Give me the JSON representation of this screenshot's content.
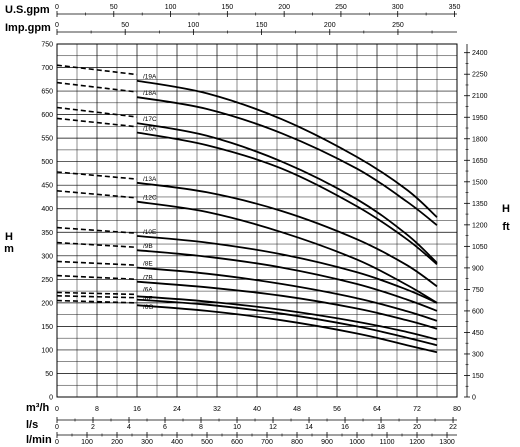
{
  "chart_data": {
    "type": "line",
    "y_left": {
      "unit_top": "H",
      "unit_bottom": "m",
      "ticks": [
        0,
        50,
        100,
        150,
        200,
        250,
        300,
        350,
        400,
        450,
        500,
        550,
        600,
        650,
        700,
        750
      ],
      "range": [
        0,
        750
      ]
    },
    "y_right": {
      "unit_top": "H",
      "unit_bottom": "ft",
      "ticks": [
        0,
        150,
        300,
        450,
        600,
        750,
        900,
        1050,
        1200,
        1350,
        1500,
        1650,
        1800,
        1950,
        2100,
        2250,
        2400
      ],
      "range": [
        0,
        2460.6
      ]
    },
    "x_axes": [
      {
        "label": "U.S.gpm",
        "position": "top",
        "ticks": [
          0,
          50,
          100,
          150,
          200,
          250,
          300,
          350
        ],
        "max": 352.2
      },
      {
        "label": "Imp.gpm",
        "position": "top",
        "ticks": [
          0,
          50,
          100,
          150,
          200,
          250
        ],
        "max": 293.3
      },
      {
        "label": "m³/h",
        "position": "bottom",
        "ticks": [
          0,
          8,
          16,
          24,
          32,
          40,
          48,
          56,
          64,
          72,
          80
        ],
        "max": 80
      },
      {
        "label": "l/s",
        "position": "bottom",
        "ticks": [
          0,
          2,
          4,
          6,
          8,
          10,
          12,
          14,
          16,
          18,
          20,
          22
        ],
        "max": 22.22
      },
      {
        "label": "l/min",
        "position": "bottom",
        "ticks": [
          0,
          100,
          200,
          300,
          400,
          500,
          600,
          700,
          800,
          900,
          1000,
          1100,
          1200,
          1300
        ],
        "max": 1333.3
      }
    ],
    "series": [
      {
        "name": "/19A",
        "dashed": [
          [
            0,
            705
          ],
          [
            16,
            685
          ]
        ],
        "solid": [
          [
            16,
            672
          ],
          [
            30,
            645
          ],
          [
            45,
            590
          ],
          [
            60,
            510
          ],
          [
            70,
            440
          ],
          [
            76,
            382
          ]
        ]
      },
      {
        "name": "/18A",
        "dashed": [
          [
            0,
            668
          ],
          [
            16,
            648
          ]
        ],
        "solid": [
          [
            16,
            637
          ],
          [
            30,
            612
          ],
          [
            45,
            560
          ],
          [
            60,
            485
          ],
          [
            70,
            415
          ],
          [
            76,
            365
          ]
        ]
      },
      {
        "name": "/17C",
        "dashed": [
          [
            0,
            615
          ],
          [
            16,
            595
          ]
        ],
        "solid": [
          [
            16,
            582
          ],
          [
            30,
            555
          ],
          [
            45,
            500
          ],
          [
            60,
            420
          ],
          [
            70,
            345
          ],
          [
            76,
            285
          ]
        ]
      },
      {
        "name": "/16A",
        "dashed": [
          [
            0,
            592
          ],
          [
            16,
            574
          ]
        ],
        "solid": [
          [
            16,
            562
          ],
          [
            30,
            535
          ],
          [
            45,
            485
          ],
          [
            60,
            405
          ],
          [
            70,
            335
          ],
          [
            76,
            282
          ]
        ]
      },
      {
        "name": "/13A",
        "dashed": [
          [
            0,
            478
          ],
          [
            16,
            463
          ]
        ],
        "solid": [
          [
            16,
            455
          ],
          [
            30,
            435
          ],
          [
            45,
            395
          ],
          [
            60,
            335
          ],
          [
            70,
            280
          ],
          [
            76,
            235
          ]
        ]
      },
      {
        "name": "/12C",
        "dashed": [
          [
            0,
            438
          ],
          [
            16,
            423
          ]
        ],
        "solid": [
          [
            16,
            415
          ],
          [
            30,
            393
          ],
          [
            45,
            350
          ],
          [
            60,
            292
          ],
          [
            70,
            238
          ],
          [
            76,
            200
          ]
        ]
      },
      {
        "name": "/10E",
        "dashed": [
          [
            0,
            360
          ],
          [
            16,
            348
          ]
        ],
        "solid": [
          [
            16,
            342
          ],
          [
            30,
            328
          ],
          [
            45,
            303
          ],
          [
            60,
            265
          ],
          [
            70,
            228
          ],
          [
            76,
            200
          ]
        ]
      },
      {
        "name": "/9B",
        "dashed": [
          [
            0,
            328
          ],
          [
            16,
            318
          ]
        ],
        "solid": [
          [
            16,
            312
          ],
          [
            30,
            298
          ],
          [
            45,
            275
          ],
          [
            60,
            240
          ],
          [
            70,
            207
          ],
          [
            76,
            183
          ]
        ]
      },
      {
        "name": "/8E",
        "dashed": [
          [
            0,
            288
          ],
          [
            16,
            280
          ]
        ],
        "solid": [
          [
            16,
            275
          ],
          [
            30,
            262
          ],
          [
            45,
            240
          ],
          [
            60,
            210
          ],
          [
            70,
            182
          ],
          [
            76,
            162
          ]
        ]
      },
      {
        "name": "/7B",
        "dashed": [
          [
            0,
            258
          ],
          [
            16,
            250
          ]
        ],
        "solid": [
          [
            16,
            245
          ],
          [
            30,
            233
          ],
          [
            45,
            215
          ],
          [
            60,
            188
          ],
          [
            70,
            163
          ],
          [
            76,
            145
          ]
        ]
      },
      {
        "name": "/6A",
        "dashed": [
          [
            0,
            222
          ],
          [
            16,
            218
          ]
        ],
        "solid": [
          [
            16,
            214
          ],
          [
            30,
            203
          ],
          [
            45,
            185
          ],
          [
            60,
            160
          ],
          [
            70,
            138
          ],
          [
            76,
            122
          ]
        ]
      },
      {
        "name": "/6F",
        "dashed": [
          [
            0,
            215
          ],
          [
            16,
            211
          ]
        ],
        "solid": [
          [
            16,
            207
          ],
          [
            30,
            196
          ],
          [
            45,
            177
          ],
          [
            60,
            150
          ],
          [
            70,
            126
          ],
          [
            76,
            110
          ]
        ]
      },
      {
        "name": "/6G",
        "dashed": [
          [
            0,
            205
          ],
          [
            16,
            200
          ]
        ],
        "solid": [
          [
            16,
            195
          ],
          [
            30,
            183
          ],
          [
            45,
            163
          ],
          [
            60,
            135
          ],
          [
            70,
            110
          ],
          [
            76,
            95
          ]
        ]
      }
    ]
  }
}
